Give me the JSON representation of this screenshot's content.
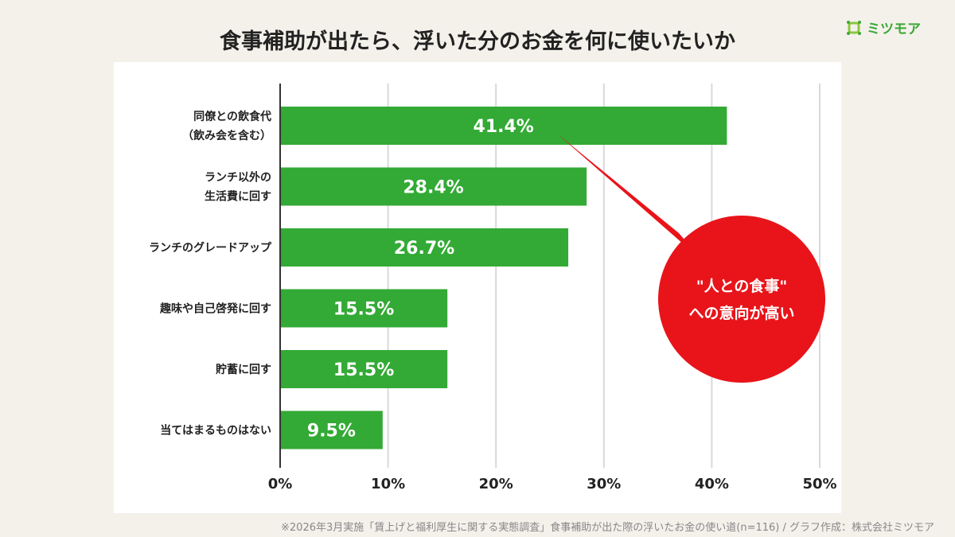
{
  "header": {
    "title": "食事補助が出たら、浮いた分のお金を何に使いたいか"
  },
  "logo": {
    "text": "ミツモア",
    "color": "#3aa935"
  },
  "callout": {
    "line1": "\"人との食事\"",
    "line2": "への意向が高い",
    "color": "#e8141a"
  },
  "footer": {
    "note": "※2026年3月実施「賃上げと福利厚生に関する実態調査」食事補助が出た際の浮いたお金の使い道(n=116) / グラフ作成：株式会社ミツモア"
  },
  "chart_data": {
    "type": "bar",
    "orientation": "horizontal",
    "categories": [
      [
        "同僚との飲食代",
        "（飲み会を含む）"
      ],
      [
        "ランチ以外の",
        "生活費に回す"
      ],
      [
        "ランチのグレードアップ"
      ],
      [
        "趣味や自己啓発に回す"
      ],
      [
        "貯蓄に回す"
      ],
      [
        "当てはまるものはない"
      ]
    ],
    "values": [
      41.4,
      28.4,
      26.7,
      15.5,
      15.5,
      9.5
    ],
    "data_labels": [
      "41.4%",
      "28.4%",
      "26.7%",
      "15.5%",
      "15.5%",
      "9.5%"
    ],
    "xlim": [
      0,
      50
    ],
    "xticks": [
      "0%",
      "10%",
      "20%",
      "30%",
      "40%",
      "50%"
    ],
    "grid": true,
    "bar_color": "#33aa35"
  }
}
